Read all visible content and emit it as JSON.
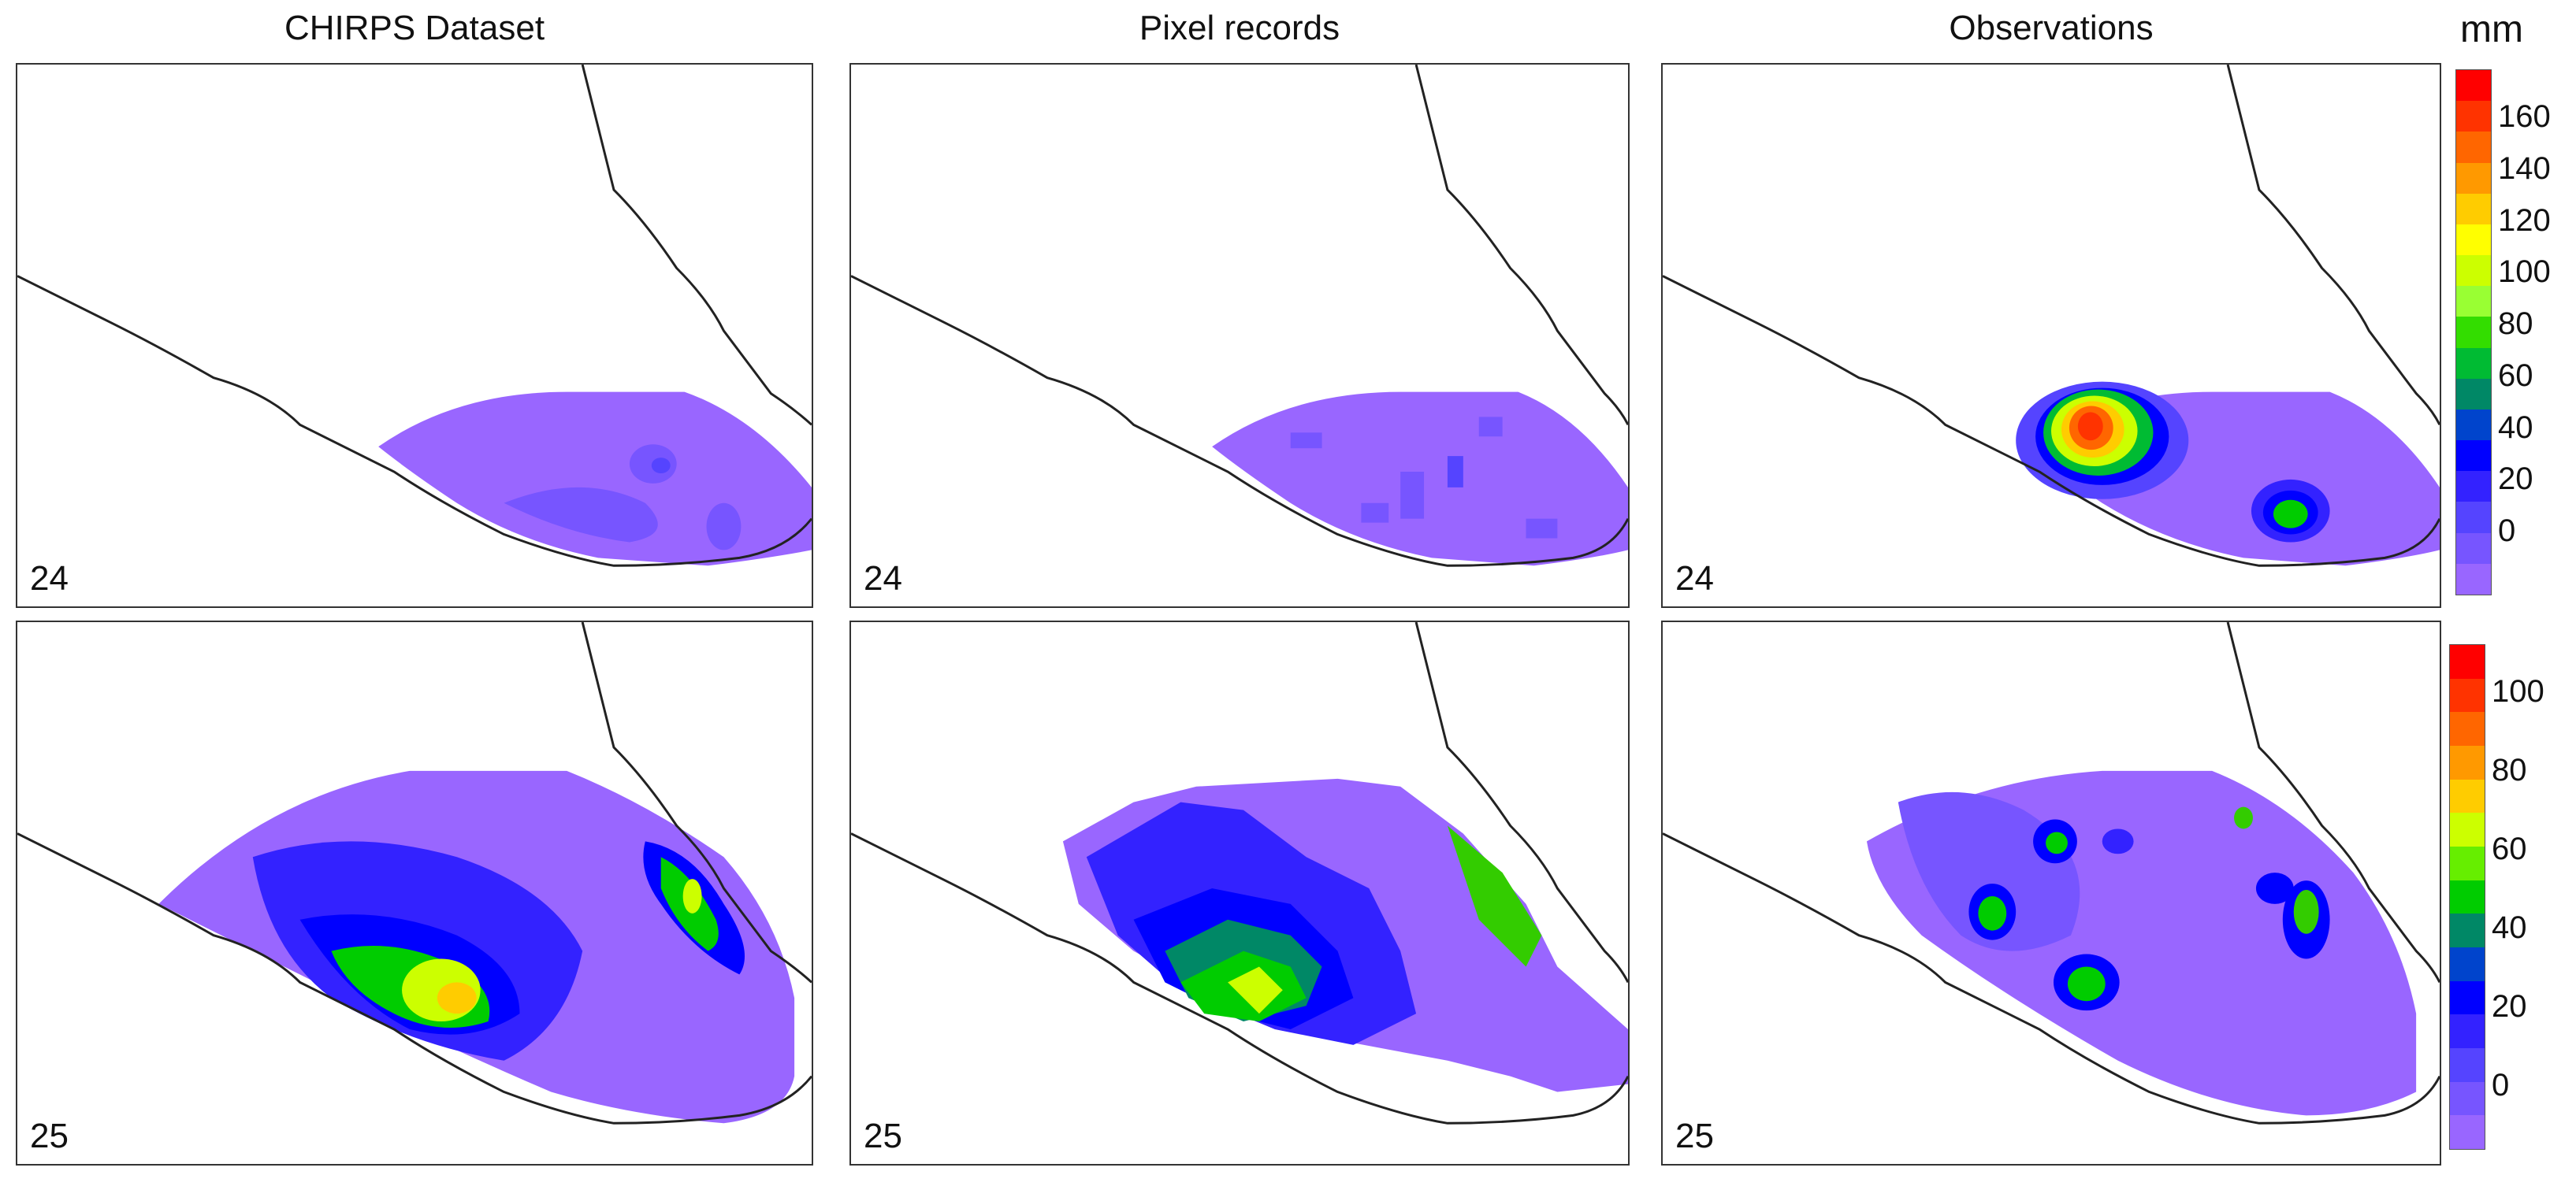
{
  "columns": [
    "CHIRPS Dataset",
    "Pixel records",
    "Observations"
  ],
  "rows": [
    {
      "day": "24",
      "panels": [
        "24",
        "24",
        "24"
      ]
    },
    {
      "day": "25",
      "panels": [
        "25",
        "25",
        "25"
      ]
    }
  ],
  "legend_top": {
    "unit": "mm",
    "ticks": [
      "160",
      "140",
      "120",
      "100",
      "80",
      "60",
      "40",
      "20",
      "0"
    ],
    "colors": [
      "#ff0000",
      "#ff3300",
      "#ff6600",
      "#ff9900",
      "#ffcc00",
      "#ffff00",
      "#ccff00",
      "#99ff33",
      "#33dd00",
      "#00bb33",
      "#008866",
      "#0044cc",
      "#0000ff",
      "#3322ff",
      "#5544ff",
      "#7755ff",
      "#9966ff"
    ]
  },
  "legend_bottom": {
    "ticks": [
      "100",
      "80",
      "60",
      "40",
      "20",
      "0"
    ],
    "colors": [
      "#ff0000",
      "#ff3300",
      "#ff6600",
      "#ff9900",
      "#ffcc00",
      "#ccff00",
      "#66ee00",
      "#00cc00",
      "#008866",
      "#0044cc",
      "#0000ff",
      "#3322ff",
      "#5544ff",
      "#7755ff",
      "#9966ff"
    ]
  },
  "map_colors": {
    "base": "#9966ff",
    "light_blue": "#7755ff",
    "blue": "#3322ff",
    "deep_blue": "#0000ff",
    "teal": "#008866",
    "green": "#33cc00",
    "yellow_green": "#ccff00",
    "yellow": "#ffff00",
    "orange": "#ff9900",
    "red": "#ff3300"
  }
}
